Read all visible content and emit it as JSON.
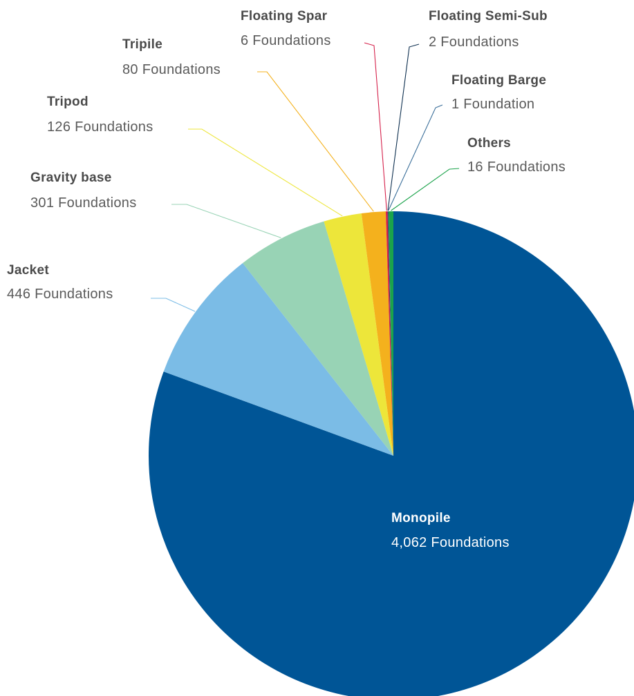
{
  "chart_data": {
    "type": "pie",
    "start_angle": "top",
    "direction": "clockwise",
    "legend": "none",
    "slices": [
      {
        "name": "Monopile",
        "value": 4062,
        "label": "4,062 Foundations",
        "color": "#005596"
      },
      {
        "name": "Jacket",
        "value": 446,
        "label": "446 Foundations",
        "color": "#7bbce6"
      },
      {
        "name": "Gravity base",
        "value": 301,
        "label": "301 Foundations",
        "color": "#98d3b5"
      },
      {
        "name": "Tripod",
        "value": 126,
        "label": "126 Foundations",
        "color": "#ede63a"
      },
      {
        "name": "Tripile",
        "value": 80,
        "label": "80 Foundations",
        "color": "#f4b11d"
      },
      {
        "name": "Floating Spar",
        "value": 6,
        "label": "6 Foundations",
        "color": "#d5204a"
      },
      {
        "name": "Floating Semi-Sub",
        "value": 2,
        "label": "2 Foundations",
        "color": "#0d2f4f"
      },
      {
        "name": "Floating Barge",
        "value": 1,
        "label": "1 Foundation",
        "color": "#3a6e99"
      },
      {
        "name": "Others",
        "value": 16,
        "label": "16 Foundations",
        "color": "#1ba34b"
      }
    ]
  }
}
